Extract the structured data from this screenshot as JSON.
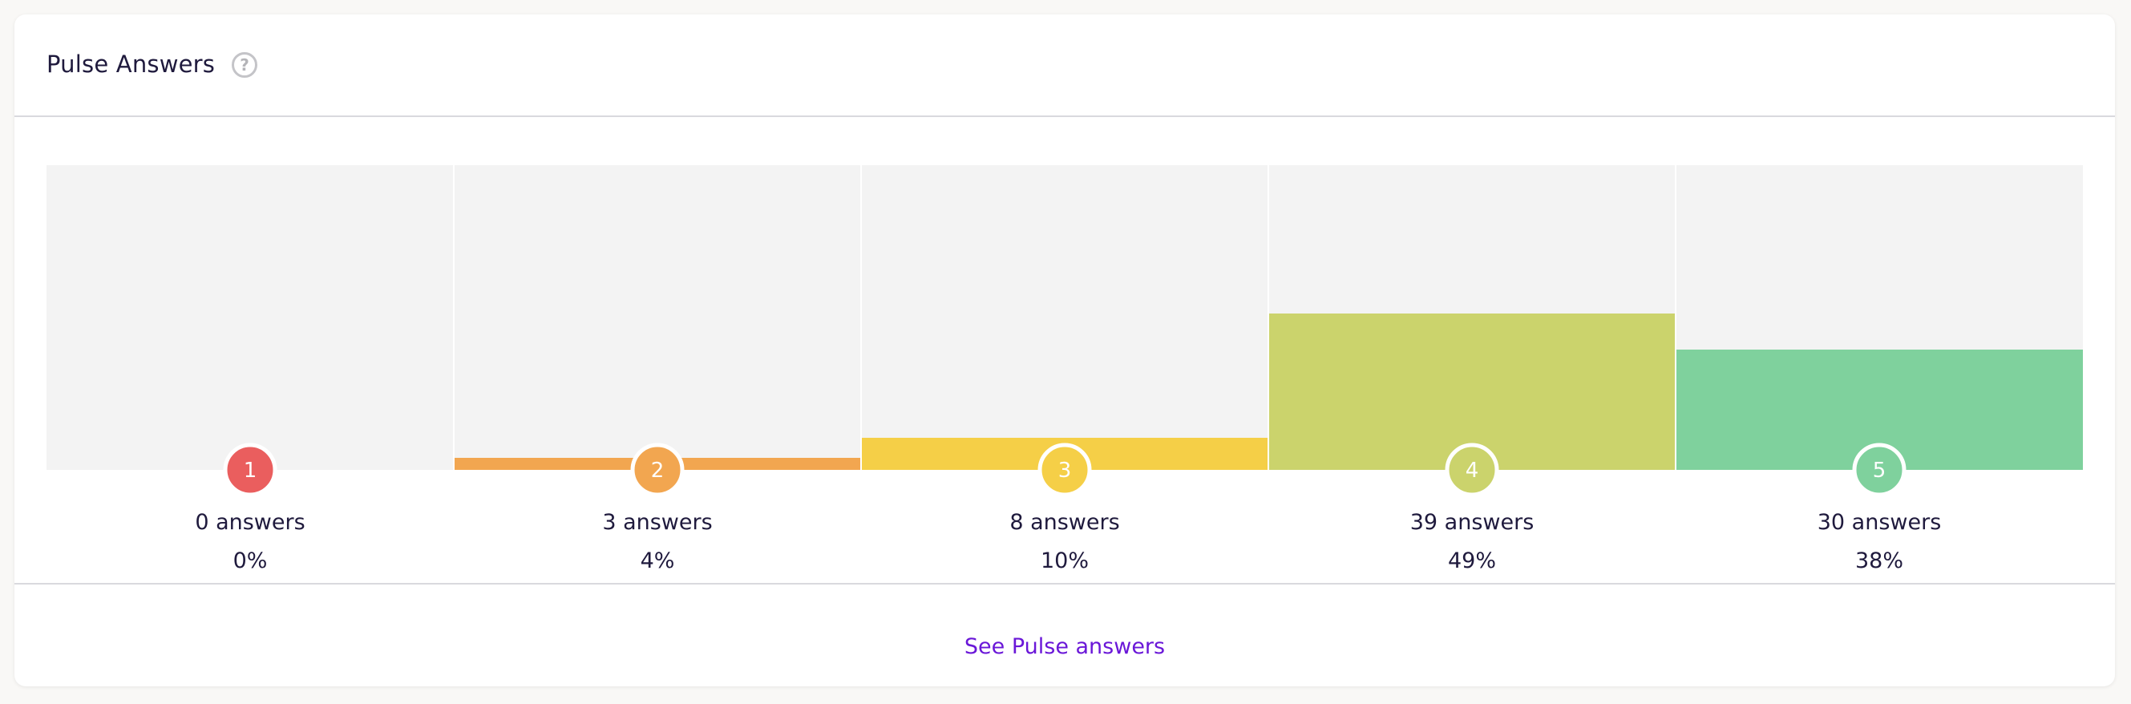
{
  "header": {
    "title": "Pulse Answers",
    "help_icon": "?"
  },
  "footer": {
    "link_label": "See Pulse answers"
  },
  "colors": {
    "track": "#f3f3f3",
    "divider": "#e4e4e4",
    "text": "#1f1a3d",
    "link": "#6a17d8"
  },
  "chart_data": {
    "type": "bar",
    "categories": [
      "1",
      "2",
      "3",
      "4",
      "5"
    ],
    "values": [
      0,
      3,
      8,
      39,
      30
    ],
    "percentages": [
      "0%",
      "4%",
      "10%",
      "49%",
      "38%"
    ],
    "answer_labels": [
      "0 answers",
      "3 answers",
      "8 answers",
      "39 answers",
      "30 answers"
    ],
    "colors": [
      "#ea5e5e",
      "#f2a650",
      "#f5cf47",
      "#cbd36c",
      "#7fd19d"
    ],
    "ylim": [
      0,
      76
    ]
  }
}
